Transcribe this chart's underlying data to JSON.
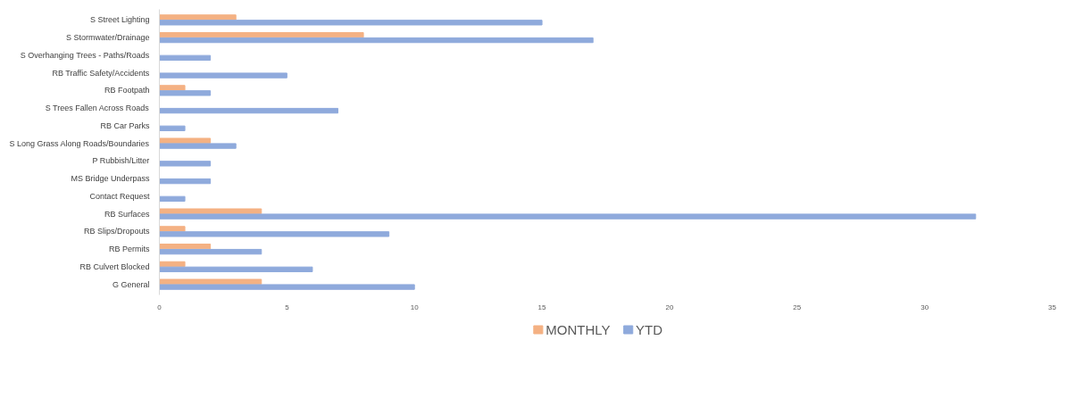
{
  "chart_data": {
    "type": "bar",
    "orientation": "horizontal",
    "categories": [
      "S Street Lighting",
      "S Stormwater/Drainage",
      "S Overhanging Trees - Paths/Roads",
      "RB Traffic Safety/Accidents",
      "RB Footpath",
      "S Trees Fallen Across Roads",
      "RB Car Parks",
      "S Long Grass Along Roads/Boundaries",
      "P Rubbish/Litter",
      "MS Bridge Underpass",
      "Contact Request",
      "RB Surfaces",
      "RB Slips/Dropouts",
      "RB Permits",
      "RB Culvert Blocked",
      "G General"
    ],
    "series": [
      {
        "name": "MONTHLY",
        "color": "#f4b183",
        "values": [
          3,
          8,
          0,
          0,
          1,
          0,
          0,
          2,
          0,
          0,
          0,
          4,
          1,
          2,
          1,
          4
        ]
      },
      {
        "name": "YTD",
        "color": "#8faadc",
        "values": [
          15,
          17,
          2,
          5,
          2,
          7,
          1,
          3,
          2,
          2,
          1,
          32,
          9,
          4,
          6,
          10
        ]
      }
    ],
    "xlim": [
      0,
      35
    ],
    "xticks": [
      0,
      5,
      10,
      15,
      20,
      25,
      30,
      35
    ],
    "grid": false,
    "legend": "bottom"
  }
}
